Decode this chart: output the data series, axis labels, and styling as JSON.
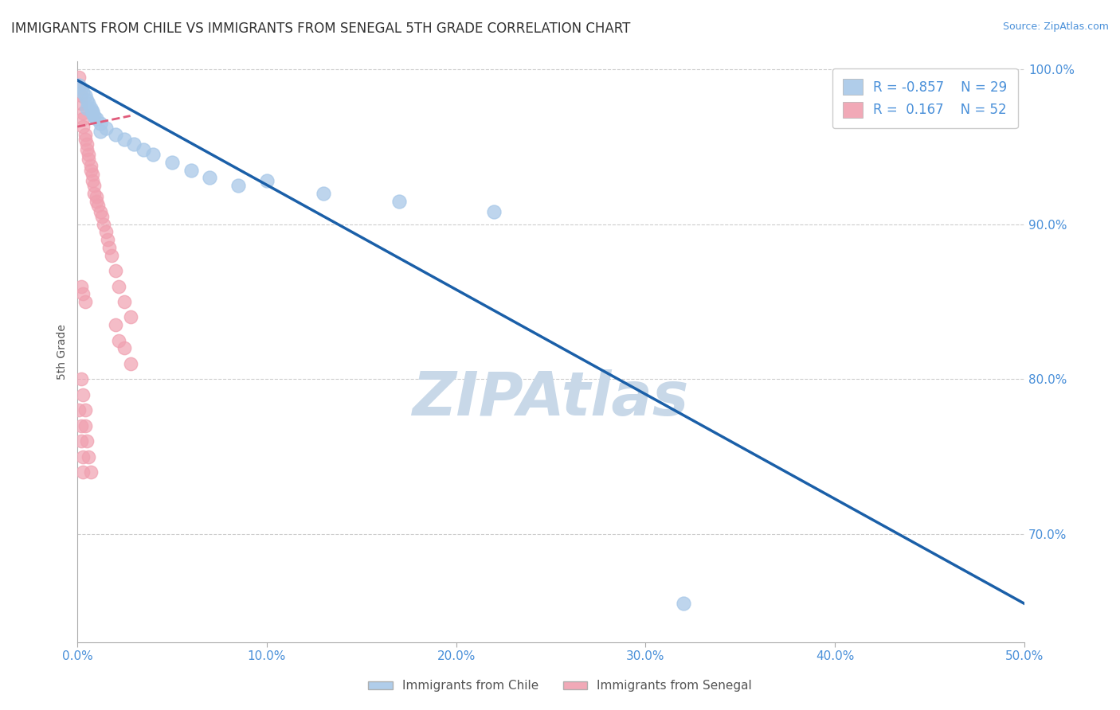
{
  "title": "IMMIGRANTS FROM CHILE VS IMMIGRANTS FROM SENEGAL 5TH GRADE CORRELATION CHART",
  "source": "Source: ZipAtlas.com",
  "ylabel": "5th Grade",
  "xlim": [
    0.0,
    0.5
  ],
  "ylim": [
    0.63,
    1.005
  ],
  "xtick_positions": [
    0.0,
    0.1,
    0.2,
    0.3,
    0.4,
    0.5
  ],
  "xtick_labels": [
    "0.0%",
    "10.0%",
    "20.0%",
    "30.0%",
    "40.0%",
    "50.0%"
  ],
  "right_ytick_positions": [
    1.0,
    0.9,
    0.8,
    0.7
  ],
  "right_ytick_labels": [
    "100.0%",
    "90.0%",
    "80.0%",
    "70.0%"
  ],
  "chile_color": "#a8c8e8",
  "senegal_color": "#f0a0b0",
  "chile_R": -0.857,
  "chile_N": 29,
  "senegal_R": 0.167,
  "senegal_N": 52,
  "watermark": "ZIPAtlas",
  "watermark_color": "#c8d8e8",
  "legend_label_chile": "Immigrants from Chile",
  "legend_label_senegal": "Immigrants from Senegal",
  "chile_scatter_x": [
    0.001,
    0.002,
    0.003,
    0.004,
    0.005,
    0.006,
    0.007,
    0.008,
    0.009,
    0.01,
    0.012,
    0.015,
    0.02,
    0.025,
    0.03,
    0.035,
    0.04,
    0.05,
    0.06,
    0.07,
    0.085,
    0.1,
    0.13,
    0.17,
    0.22,
    0.32,
    0.005,
    0.008,
    0.012
  ],
  "chile_scatter_y": [
    0.99,
    0.988,
    0.985,
    0.983,
    0.98,
    0.978,
    0.975,
    0.973,
    0.97,
    0.968,
    0.965,
    0.962,
    0.958,
    0.955,
    0.952,
    0.948,
    0.945,
    0.94,
    0.935,
    0.93,
    0.925,
    0.928,
    0.92,
    0.915,
    0.908,
    0.655,
    0.975,
    0.972,
    0.96
  ],
  "senegal_scatter_x": [
    0.001,
    0.001,
    0.002,
    0.002,
    0.003,
    0.003,
    0.003,
    0.004,
    0.004,
    0.005,
    0.005,
    0.006,
    0.006,
    0.007,
    0.007,
    0.008,
    0.008,
    0.009,
    0.009,
    0.01,
    0.01,
    0.011,
    0.012,
    0.013,
    0.014,
    0.015,
    0.016,
    0.017,
    0.018,
    0.02,
    0.022,
    0.025,
    0.028,
    0.02,
    0.022,
    0.025,
    0.028,
    0.002,
    0.003,
    0.004,
    0.001,
    0.002,
    0.002,
    0.003,
    0.003,
    0.002,
    0.003,
    0.004,
    0.004,
    0.005,
    0.006,
    0.007
  ],
  "senegal_scatter_y": [
    0.995,
    0.988,
    0.983,
    0.978,
    0.972,
    0.968,
    0.963,
    0.958,
    0.955,
    0.952,
    0.948,
    0.945,
    0.942,
    0.938,
    0.935,
    0.932,
    0.928,
    0.925,
    0.92,
    0.918,
    0.915,
    0.912,
    0.908,
    0.905,
    0.9,
    0.895,
    0.89,
    0.885,
    0.88,
    0.87,
    0.86,
    0.85,
    0.84,
    0.835,
    0.825,
    0.82,
    0.81,
    0.86,
    0.855,
    0.85,
    0.78,
    0.77,
    0.76,
    0.75,
    0.74,
    0.8,
    0.79,
    0.78,
    0.77,
    0.76,
    0.75,
    0.74
  ],
  "chile_line_x0": 0.0,
  "chile_line_y0": 0.993,
  "chile_line_x1": 0.5,
  "chile_line_y1": 0.655,
  "senegal_line_x0": 0.0,
  "senegal_line_y0": 0.963,
  "senegal_line_x1": 0.028,
  "senegal_line_y1": 0.97,
  "background_color": "#ffffff",
  "grid_color": "#cccccc",
  "axis_color": "#aaaaaa",
  "title_color": "#333333",
  "tick_color": "#4a90d9",
  "legend_r_color": "#4a90d9",
  "chile_line_color": "#1a5fa8",
  "senegal_line_color": "#e05a7a"
}
